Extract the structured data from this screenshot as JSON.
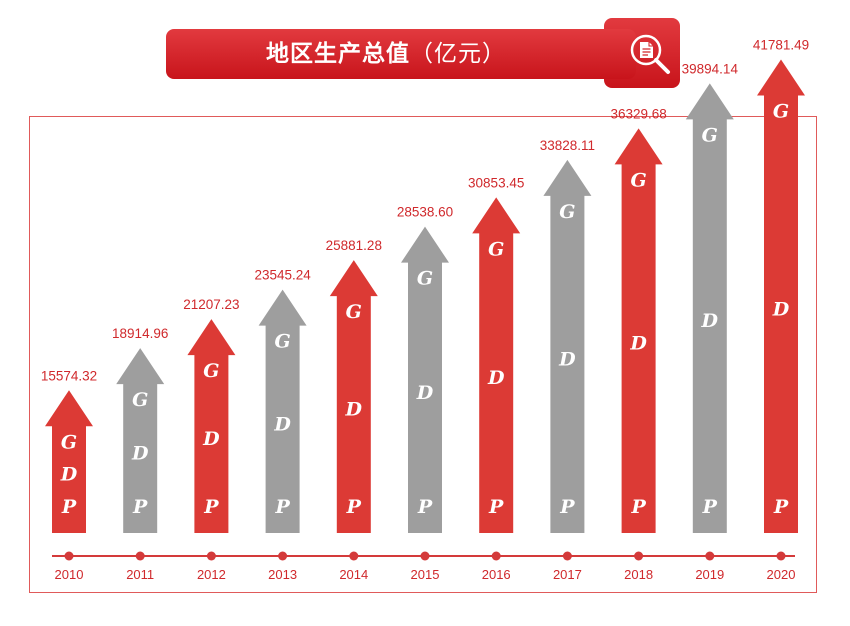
{
  "title": {
    "main": "地区生产总值",
    "unit": "（亿元）"
  },
  "icon": "search-document-icon",
  "colors": {
    "red": "#dc3a35",
    "gray": "#9e9e9e",
    "banner": "#d01c22",
    "value_label": "#d0292c",
    "year_label": "#d0292c",
    "timeline": "#d43a3a"
  },
  "chart_data": {
    "type": "bar",
    "categories": [
      "2010",
      "2011",
      "2012",
      "2013",
      "2014",
      "2015",
      "2016",
      "2017",
      "2018",
      "2019",
      "2020"
    ],
    "values": [
      15574.32,
      18914.96,
      21207.23,
      23545.24,
      25881.28,
      28538.6,
      30853.45,
      33828.11,
      36329.68,
      39894.14,
      41781.49
    ],
    "value_labels": [
      "15574.32",
      "18914.96",
      "21207.23",
      "23545.24",
      "25881.28",
      "28538.60",
      "30853.45",
      "33828.11",
      "36329.68",
      "39894.14",
      "41781.49"
    ],
    "bar_colors": [
      "red",
      "gray",
      "red",
      "gray",
      "red",
      "gray",
      "red",
      "gray",
      "red",
      "gray",
      "red"
    ],
    "bar_letters": [
      "G",
      "D",
      "P"
    ],
    "title": "地区生产总值（亿元）",
    "ylim": [
      0,
      45000
    ],
    "grid": false,
    "legend": "none"
  }
}
